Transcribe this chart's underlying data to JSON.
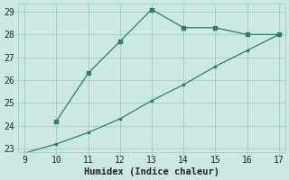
{
  "line1_x": [
    10,
    11,
    12,
    13,
    14,
    15,
    16,
    17
  ],
  "line1_y": [
    24.2,
    26.3,
    27.7,
    29.1,
    28.3,
    28.3,
    28.0,
    28.0
  ],
  "line2_x": [
    9,
    10,
    11,
    12,
    13,
    14,
    15,
    16,
    17
  ],
  "line2_y": [
    22.8,
    23.2,
    23.7,
    24.3,
    25.1,
    25.8,
    26.6,
    27.3,
    28.0
  ],
  "line_color": "#2e7d6e",
  "bg_color": "#cce8e3",
  "grid_color": "#aacfc9",
  "xlabel": "Humidex (Indice chaleur)",
  "xlim": [
    9,
    17
  ],
  "ylim": [
    23,
    29
  ],
  "xticks": [
    9,
    10,
    11,
    12,
    13,
    14,
    15,
    16,
    17
  ],
  "yticks": [
    23,
    24,
    25,
    26,
    27,
    28,
    29
  ],
  "xlabel_fontsize": 7.5,
  "tick_fontsize": 7
}
